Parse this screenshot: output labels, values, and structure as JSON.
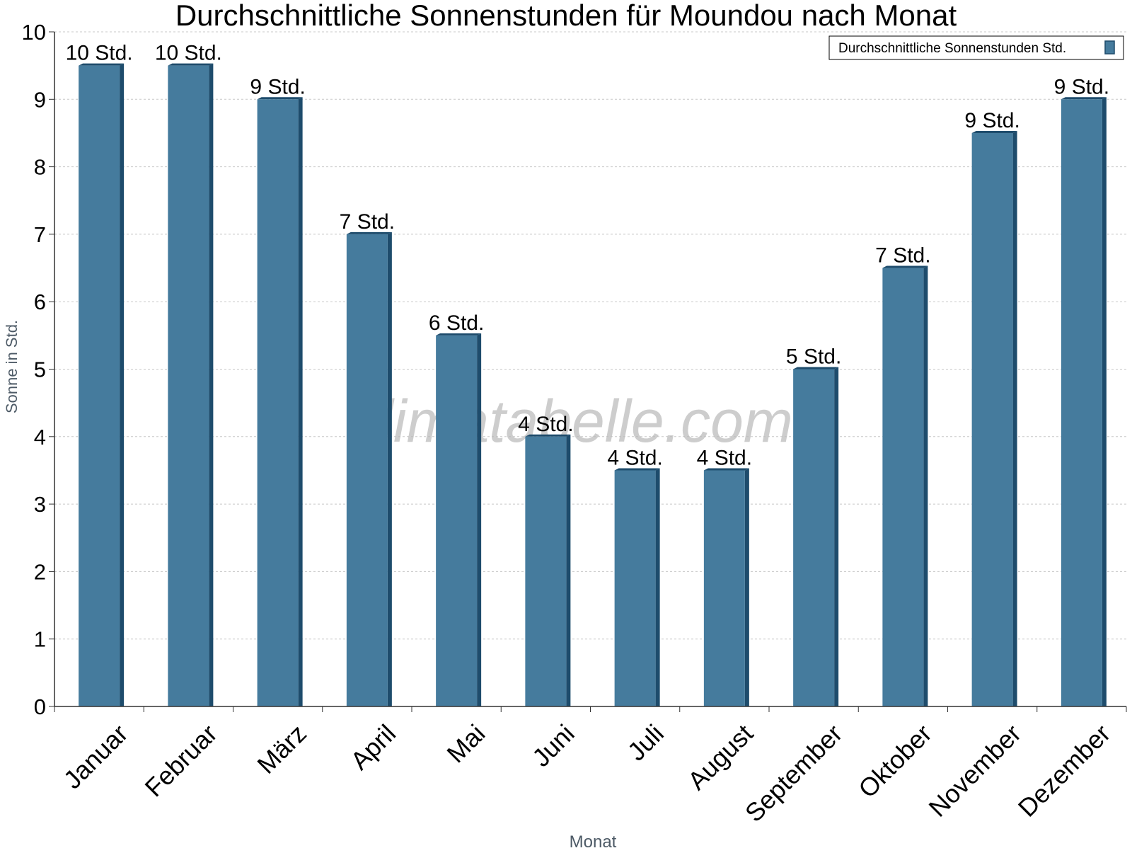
{
  "chart_data": {
    "type": "bar",
    "title": "Durchschnittliche Sonnenstunden für Moundou nach Monat",
    "xlabel": "Monat",
    "ylabel": "Sonne in Std.",
    "ylim": [
      0,
      10
    ],
    "yticks": [
      "0",
      "1",
      "2",
      "3",
      "4",
      "5",
      "6",
      "7",
      "8",
      "9",
      "10"
    ],
    "grid": true,
    "legend_position": "top-right",
    "watermark": "klimatabelle.com",
    "categories": [
      "Januar",
      "Februar",
      "März",
      "April",
      "Mai",
      "Juni",
      "Juli",
      "August",
      "September",
      "Oktober",
      "November",
      "Dezember"
    ],
    "series": [
      {
        "name": "Durchschnittliche Sonnenstunden Std.",
        "color": "#457b9d",
        "values": [
          9.5,
          9.5,
          9.0,
          7.0,
          5.5,
          4.0,
          3.5,
          3.5,
          5.0,
          6.5,
          8.5,
          9.0
        ],
        "labels": [
          "10 Std.",
          "10 Std.",
          "9 Std.",
          "7 Std.",
          "6 Std.",
          "4 Std.",
          "4 Std.",
          "4 Std.",
          "5 Std.",
          "7 Std.",
          "9 Std.",
          "9 Std."
        ]
      }
    ]
  }
}
